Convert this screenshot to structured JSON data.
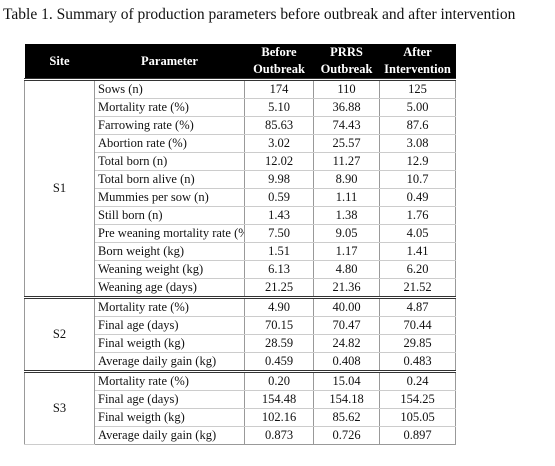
{
  "caption": "Table 1. Summary of production parameters before outbreak and after intervention",
  "headers": {
    "site": "Site",
    "parameter": "Parameter",
    "before": [
      "Before",
      "Outbreak"
    ],
    "prrs": [
      "PRRS",
      "Outbreak"
    ],
    "after": [
      "After",
      "Intervention"
    ]
  },
  "groups": [
    {
      "site": "S1",
      "rows": [
        {
          "param": "Sows (n)",
          "before": "174",
          "prrs": "110",
          "after": "125"
        },
        {
          "param": "Mortality rate (%)",
          "before": "5.10",
          "prrs": "36.88",
          "after": "5.00"
        },
        {
          "param": "Farrowing rate (%)",
          "before": "85.63",
          "prrs": "74.43",
          "after": "87.6"
        },
        {
          "param": "Abortion rate (%)",
          "before": "3.02",
          "prrs": "25.57",
          "after": "3.08"
        },
        {
          "param": "Total born (n)",
          "before": "12.02",
          "prrs": "11.27",
          "after": "12.9"
        },
        {
          "param": "Total born alive (n)",
          "before": "9.98",
          "prrs": "8.90",
          "after": "10.7"
        },
        {
          "param": "Mummies per sow (n)",
          "before": "0.59",
          "prrs": "1.11",
          "after": "0.49"
        },
        {
          "param": "Still born (n)",
          "before": "1.43",
          "prrs": "1.38",
          "after": "1.76"
        },
        {
          "param": "Pre weaning mortality rate (%)",
          "before": "7.50",
          "prrs": "9.05",
          "after": "4.05"
        },
        {
          "param": "Born weight (kg)",
          "before": "1.51",
          "prrs": "1.17",
          "after": "1.41"
        },
        {
          "param": "Weaning weight (kg)",
          "before": "6.13",
          "prrs": "4.80",
          "after": "6.20"
        },
        {
          "param": "Weaning age (days)",
          "before": "21.25",
          "prrs": "21.36",
          "after": "21.52"
        }
      ]
    },
    {
      "site": "S2",
      "rows": [
        {
          "param": "Mortality rate (%)",
          "before": "4.90",
          "prrs": "40.00",
          "after": "4.87"
        },
        {
          "param": "Final age (days)",
          "before": "70.15",
          "prrs": "70.47",
          "after": "70.44"
        },
        {
          "param": "Final weigth (kg)",
          "before": "28.59",
          "prrs": "24.82",
          "after": "29.85"
        },
        {
          "param": "Average daily gain (kg)",
          "before": "0.459",
          "prrs": "0.408",
          "after": "0.483"
        }
      ]
    },
    {
      "site": "S3",
      "rows": [
        {
          "param": "Mortality rate (%)",
          "before": "0.20",
          "prrs": "15.04",
          "after": "0.24"
        },
        {
          "param": "Final age (days)",
          "before": "154.48",
          "prrs": "154.18",
          "after": "154.25"
        },
        {
          "param": "Final weigth (kg)",
          "before": "102.16",
          "prrs": "85.62",
          "after": "105.05"
        },
        {
          "param": "Average daily gain (kg)",
          "before": "0.873",
          "prrs": "0.726",
          "after": "0.897"
        }
      ]
    }
  ]
}
